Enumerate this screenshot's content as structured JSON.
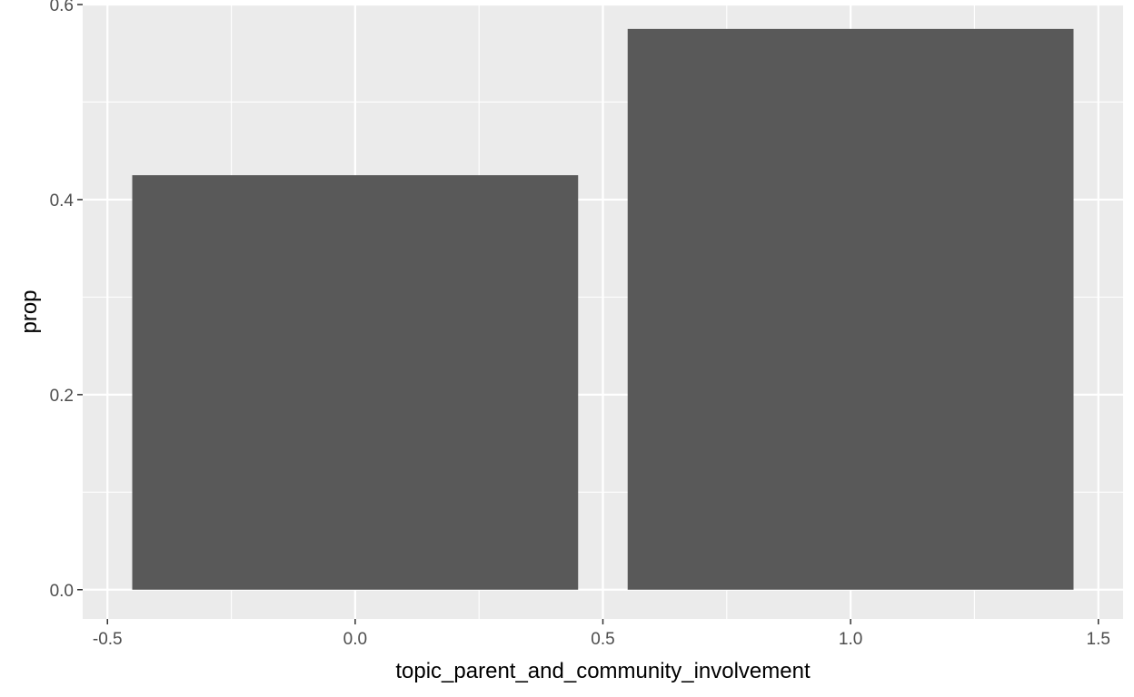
{
  "chart_data": {
    "type": "bar",
    "title": "",
    "xlabel": "topic_parent_and_community_involvement",
    "ylabel": "prop",
    "bars": [
      {
        "x": 0,
        "value": 0.425
      },
      {
        "x": 1,
        "value": 0.575
      }
    ],
    "bar_width": 0.9,
    "xlim": [
      -0.55,
      1.55
    ],
    "ylim": [
      -0.03,
      0.6
    ],
    "x_ticks": [
      -0.5,
      0.0,
      0.5,
      1.0,
      1.5
    ],
    "x_tick_labels": [
      "-0.5",
      "0.0",
      "0.5",
      "1.0",
      "1.5"
    ],
    "y_ticks": [
      0.0,
      0.2,
      0.4,
      0.6
    ],
    "y_tick_labels": [
      "0.0",
      "0.2",
      "0.4",
      "0.6"
    ],
    "grid": true,
    "legend": "none",
    "colors": {
      "panel_background": "#ebebeb",
      "grid_line": "#ffffff",
      "bar_fill": "#595959",
      "tick_mark": "#333333",
      "tick_label": "#4d4d4d"
    }
  }
}
